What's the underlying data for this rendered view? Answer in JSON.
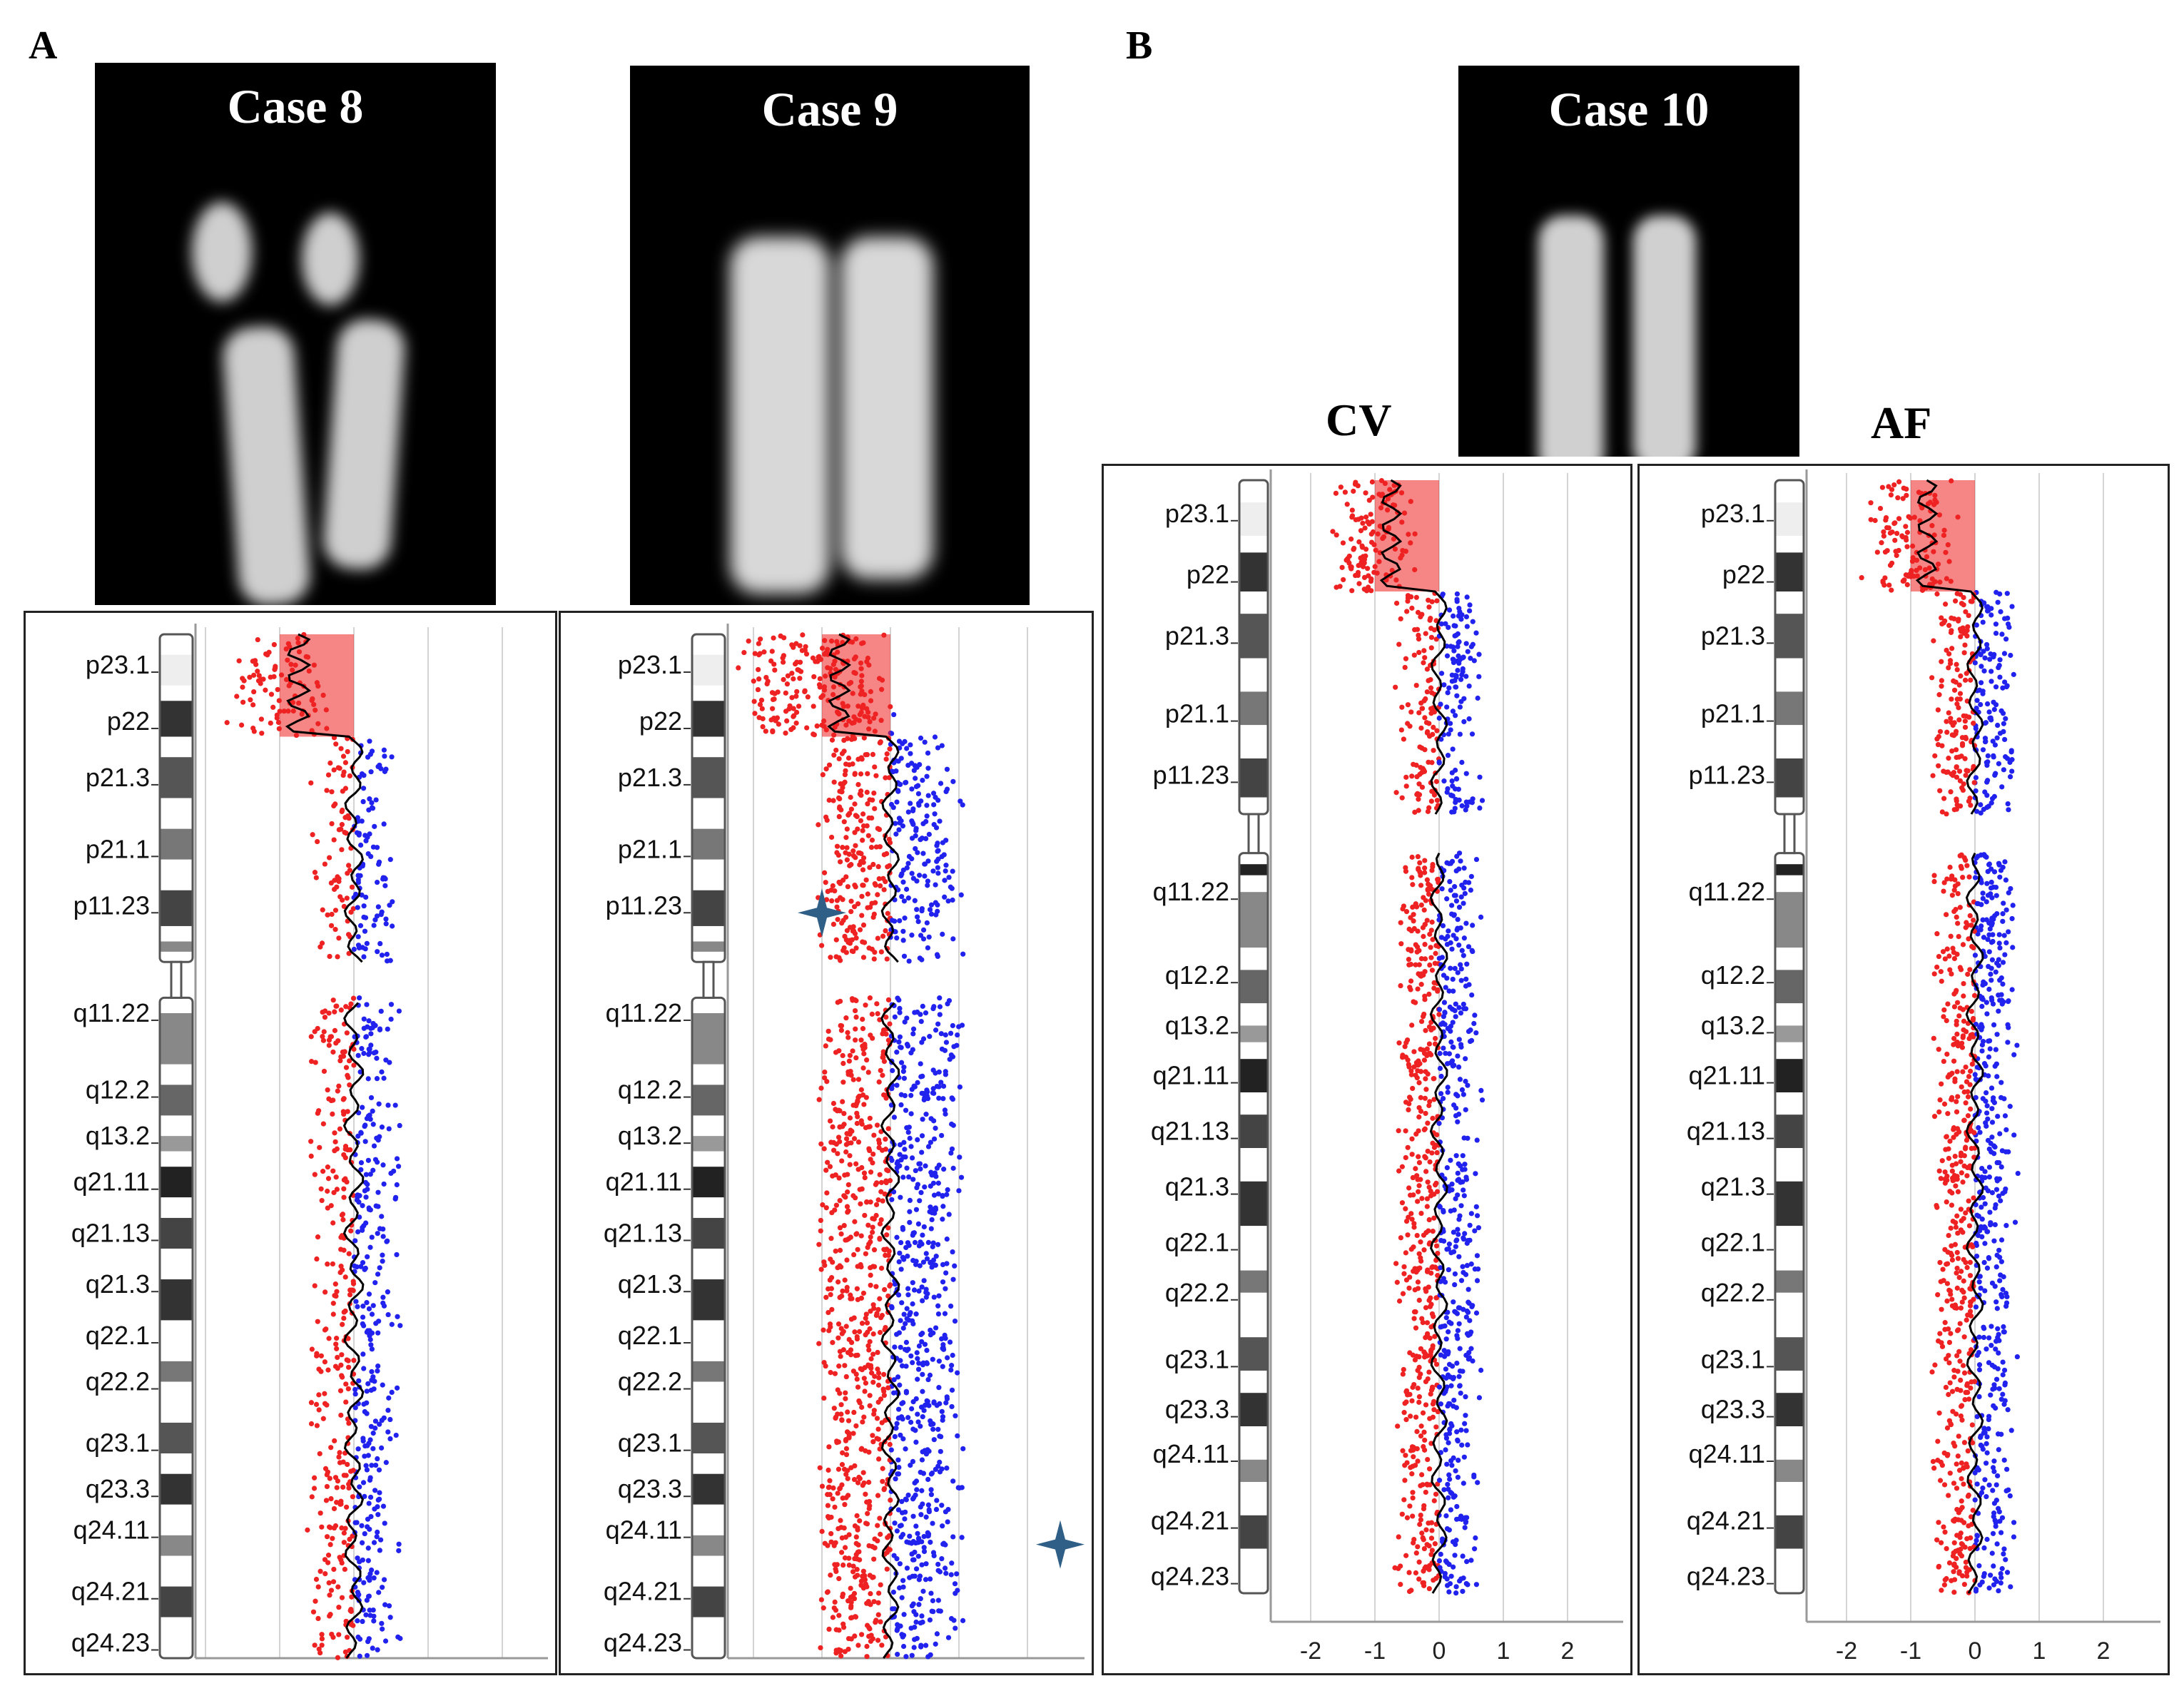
{
  "panels": {
    "a_letter": "A",
    "b_letter": "B"
  },
  "cases": {
    "case8": "Case 8",
    "case9": "Case 9",
    "case10": "Case 10"
  },
  "columns": {
    "cv": "CV",
    "af": "AF"
  },
  "axis_ticks": [
    "-2",
    "-1",
    "0",
    "1",
    "2"
  ],
  "bands": [
    "p23.1",
    "p22",
    "p21.3",
    "p21.1",
    "p11.23",
    "q11.22",
    "q12.2",
    "q13.2",
    "q21.11",
    "q21.13",
    "q21.3",
    "q22.1",
    "q22.2",
    "q23.1",
    "q23.3",
    "q24.11",
    "q24.21",
    "q24.23"
  ],
  "colors": {
    "loss": "#ee2222",
    "gain": "#2222ee",
    "trend": "#000000",
    "marker": "#2f5f86"
  }
}
